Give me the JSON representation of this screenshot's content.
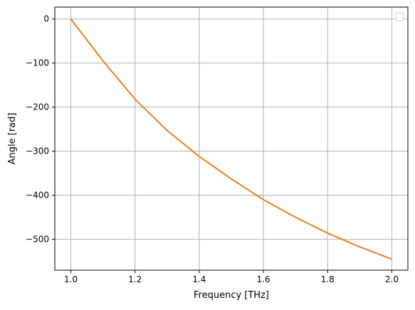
{
  "chart_data": {
    "type": "line",
    "title": "",
    "xlabel": "Frequency [THz]",
    "ylabel": "Angle [rad]",
    "xlim": [
      0.95,
      2.05
    ],
    "ylim": [
      -570,
      27
    ],
    "xticks": [
      1.0,
      1.2,
      1.4,
      1.6,
      1.8,
      2.0
    ],
    "xtick_labels": [
      "1.0",
      "1.2",
      "1.4",
      "1.6",
      "1.8",
      "2.0"
    ],
    "yticks": [
      0,
      -100,
      -200,
      -300,
      -400,
      -500
    ],
    "ytick_labels": [
      "0",
      "−100",
      "−200",
      "−300",
      "−400",
      "−500"
    ],
    "grid": true,
    "legend": {
      "placement": "top-right",
      "entries": []
    },
    "series": [
      {
        "color": "#e67e22",
        "x": [
          1.0,
          1.1,
          1.2,
          1.3,
          1.4,
          1.5,
          1.6,
          1.7,
          1.8,
          1.9,
          2.0
        ],
        "values": [
          0,
          -95,
          -182,
          -253,
          -312,
          -363,
          -410,
          -450,
          -486,
          -517,
          -545
        ]
      }
    ]
  },
  "colors": {
    "grid": "#b0b0b0",
    "axes": "#000000",
    "line": "#e67e22"
  }
}
